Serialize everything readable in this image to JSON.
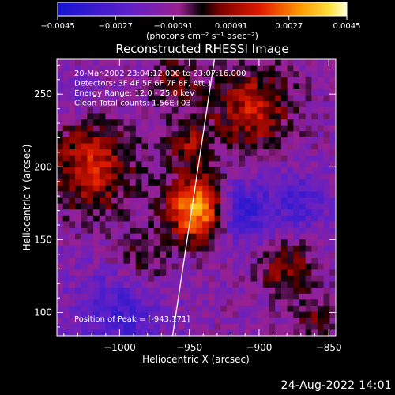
{
  "chart_data": {
    "type": "heatmap",
    "title": "Reconstructed RHESSI Image",
    "xlabel": "Heliocentric X (arcsec)",
    "ylabel": "Heliocentric Y (arcsec)",
    "xlim": [
      -1045,
      -845
    ],
    "ylim": [
      84,
      274
    ],
    "x_ticks": [
      -1000,
      -950,
      -900,
      -850
    ],
    "x_tick_labels": [
      "−1000",
      "−950",
      "−900",
      "−850"
    ],
    "y_ticks": [
      100,
      150,
      200,
      250
    ],
    "y_tick_labels": [
      "100",
      "150",
      "200",
      "250"
    ],
    "colorbar": {
      "range": [
        -0.0045,
        0.0045
      ],
      "tick_labels": [
        "−0.0045",
        "−0.0027",
        "−0.00091",
        "0.00091",
        "0.0027",
        "0.0045"
      ],
      "unit_label": "(photons cm⁻² s⁻¹ asec⁻²)"
    },
    "info_lines": [
      "20-Mar-2002 23:04:12.000 to 23:07:16.000",
      "Detectors: 3F 4F 5F 6F 7F 8F, Att 1",
      "Energy Range: 12.0 - 25.0 keV",
      "Clean    Total counts: 1.56E+03"
    ],
    "peak_label": "Position of Peak = [-943,171]",
    "peak": {
      "x": -943,
      "y": 171
    },
    "limb_line": [
      [
        -962,
        84
      ],
      [
        -932,
        274
      ]
    ]
  },
  "timestamp": "24-Aug-2022 14:01"
}
